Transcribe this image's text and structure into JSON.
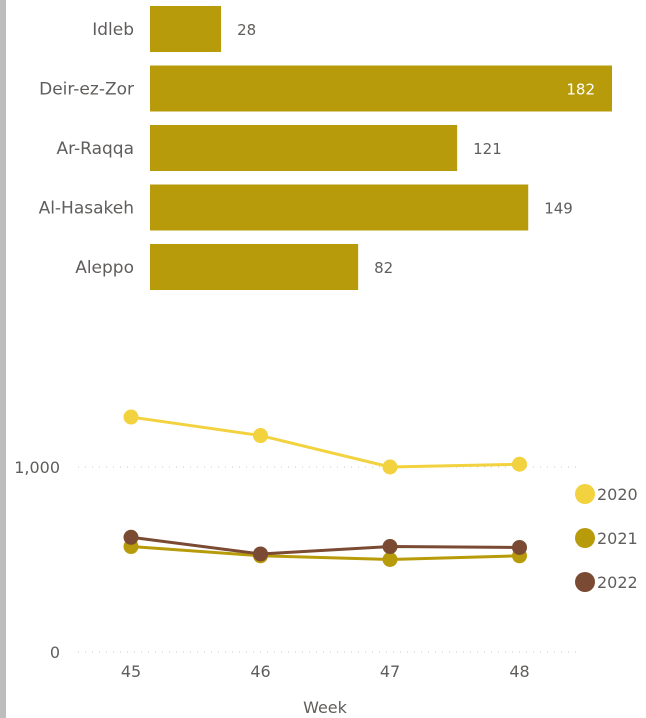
{
  "chart_data": [
    {
      "type": "bar",
      "orientation": "horizontal",
      "title": "",
      "categories": [
        "Idleb",
        "Deir-ez-Zor",
        "Ar-Raqqa",
        "Al-Hasakeh",
        "Aleppo"
      ],
      "values": [
        28,
        182,
        121,
        149,
        82
      ],
      "xlim": [
        0,
        182
      ],
      "data_labels": true,
      "color": "#b89b0a"
    },
    {
      "type": "line",
      "title": "",
      "xlabel": "Week",
      "ylabel": "",
      "x": [
        45,
        46,
        47,
        48
      ],
      "y_ticks": [
        "0",
        "1,000"
      ],
      "ylim": [
        0,
        1400
      ],
      "grid": true,
      "legend_position": "right",
      "series": [
        {
          "name": "2020",
          "color": "#f2d23e",
          "values": [
            1270,
            1170,
            1000,
            1015
          ]
        },
        {
          "name": "2021",
          "color": "#b89b0a",
          "values": [
            570,
            520,
            500,
            520
          ]
        },
        {
          "name": "2022",
          "color": "#7b4a32",
          "values": [
            620,
            530,
            570,
            565
          ]
        }
      ]
    }
  ]
}
